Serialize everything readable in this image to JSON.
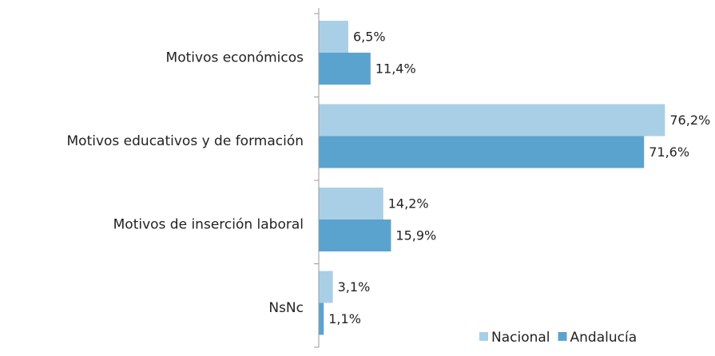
{
  "chart_data": {
    "type": "bar",
    "orientation": "horizontal",
    "categories": [
      "Motivos económicos",
      "Motivos educativos y de formación",
      "Motivos de inserción laboral",
      "NsNc"
    ],
    "series": [
      {
        "name": "Nacional",
        "color": "#a9cfe6",
        "values": [
          6.5,
          76.2,
          14.2,
          3.1
        ],
        "value_labels": [
          "6,5%",
          "76,2%",
          "14,2%",
          "3,1%"
        ]
      },
      {
        "name": "Andalucía",
        "color": "#5ba3cf",
        "values": [
          11.4,
          71.6,
          15.9,
          1.1
        ],
        "value_labels": [
          "11,4%",
          "71,6%",
          "15,9%",
          "1,1%"
        ]
      }
    ],
    "xlim": [
      0,
      80
    ],
    "legend": "bottom-right"
  }
}
